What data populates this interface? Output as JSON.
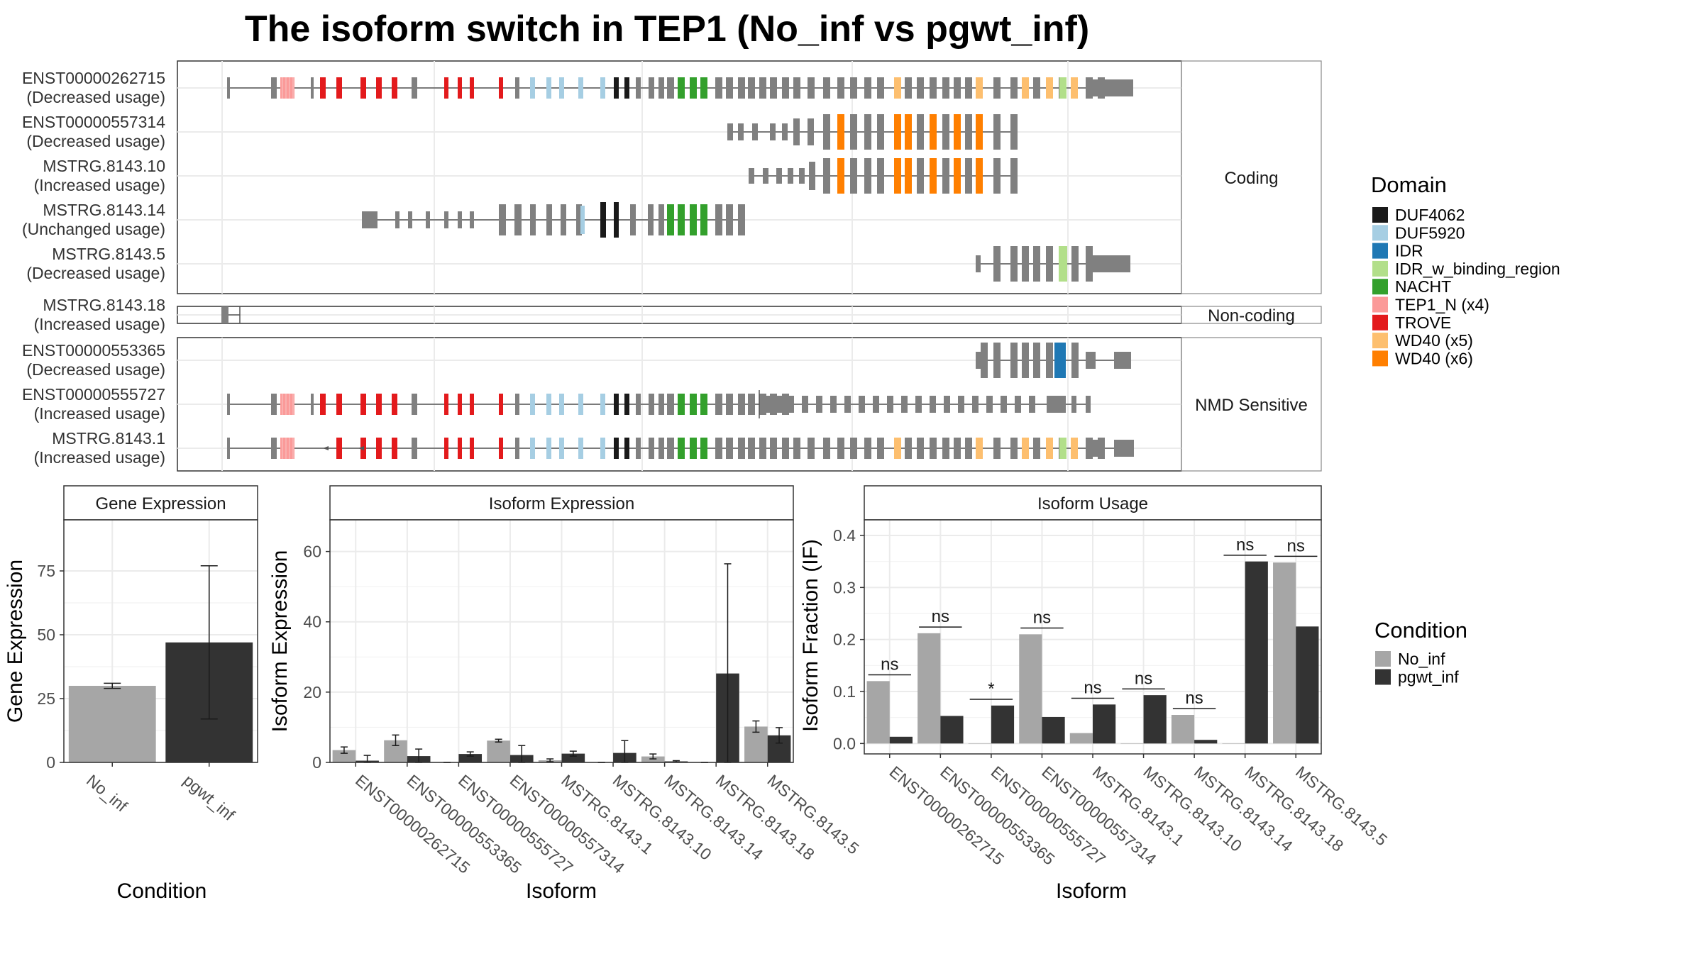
{
  "title": "The isoform switch in TEP1 (No_inf vs pgwt_inf)",
  "legend_domain": {
    "title": "Domain",
    "items": [
      {
        "label": "DUF4062",
        "color": "#1a1a1a"
      },
      {
        "label": "DUF5920",
        "color": "#a6cee3"
      },
      {
        "label": "IDR",
        "color": "#1f78b4"
      },
      {
        "label": "IDR_w_binding_region",
        "color": "#b2df8a"
      },
      {
        "label": "NACHT",
        "color": "#33a02c"
      },
      {
        "label": "TEP1_N (x4)",
        "color": "#fb9a99"
      },
      {
        "label": "TROVE",
        "color": "#e31a1c"
      },
      {
        "label": "WD40 (x5)",
        "color": "#fdbf6f"
      },
      {
        "label": "WD40 (x6)",
        "color": "#ff7f00"
      }
    ]
  },
  "legend_condition": {
    "title": "Condition",
    "items": [
      {
        "label": "No_inf",
        "color": "#a6a6a6"
      },
      {
        "label": "pgwt_inf",
        "color": "#333333"
      }
    ]
  },
  "colors": {
    "exon": "#808080",
    "intron": "#555555",
    "no_inf": "#a6a6a6",
    "pgwt_inf": "#333333"
  },
  "structure": {
    "groups": [
      {
        "label": "Coding",
        "rows": [
          {
            "name": "ENST00000262715",
            "usage": "(Decreased usage)"
          },
          {
            "name": "ENST00000557314",
            "usage": "(Decreased usage)"
          },
          {
            "name": "MSTRG.8143.10",
            "usage": "(Increased usage)"
          },
          {
            "name": "MSTRG.8143.14",
            "usage": "(Unchanged usage)"
          },
          {
            "name": "MSTRG.8143.5",
            "usage": "(Decreased usage)"
          }
        ]
      },
      {
        "label": "Non-coding",
        "rows": [
          {
            "name": "MSTRG.8143.18",
            "usage": "(Increased usage)"
          }
        ]
      },
      {
        "label": "NMD Sensitive",
        "rows": [
          {
            "name": "ENST00000553365",
            "usage": "(Decreased usage)"
          },
          {
            "name": "ENST00000555727",
            "usage": "(Increased usage)"
          },
          {
            "name": "MSTRG.8143.1",
            "usage": "(Increased usage)"
          }
        ]
      }
    ]
  },
  "chart_data": [
    {
      "type": "bar",
      "title": "Gene Expression",
      "xlabel": "Condition",
      "ylabel": "Gene Expression",
      "categories": [
        "No_inf",
        "pgwt_inf"
      ],
      "values": [
        30,
        47
      ],
      "error_low": [
        29,
        17
      ],
      "error_high": [
        31,
        77
      ],
      "ylim": [
        0,
        95
      ],
      "yticks": [
        0,
        25,
        50,
        75
      ]
    },
    {
      "type": "bar",
      "title": "Isoform Expression",
      "xlabel": "Isoform",
      "ylabel": "Isoform Expression",
      "categories": [
        "ENST00000262715",
        "ENST00000553365",
        "ENST00000555727",
        "ENST00000557314",
        "MSTRG.8143.1",
        "MSTRG.8143.10",
        "MSTRG.8143.14",
        "MSTRG.8143.18",
        "MSTRG.8143.5"
      ],
      "ylim": [
        0,
        69
      ],
      "yticks": [
        0,
        20,
        40,
        60
      ],
      "series": [
        {
          "name": "No_inf",
          "values": [
            3.5,
            6.3,
            0,
            6.2,
            0.6,
            0,
            1.7,
            0,
            10.2
          ],
          "error_low": [
            2.6,
            4.8,
            0,
            5.8,
            0.2,
            0,
            1.0,
            0,
            8.6
          ],
          "error_high": [
            4.4,
            7.8,
            0,
            6.6,
            1.0,
            0,
            2.4,
            0,
            11.8
          ]
        },
        {
          "name": "pgwt_inf",
          "values": [
            0.5,
            1.8,
            2.4,
            2.1,
            2.5,
            2.7,
            0.3,
            25.3,
            7.7
          ],
          "error_low": [
            0,
            0,
            1.8,
            0,
            1.8,
            0,
            0.1,
            0,
            5.5
          ],
          "error_high": [
            2.0,
            3.8,
            3.0,
            4.8,
            3.2,
            6.2,
            0.5,
            56.5,
            9.9
          ]
        }
      ]
    },
    {
      "type": "bar",
      "title": "Isoform Usage",
      "xlabel": "Isoform",
      "ylabel": "Isoform Fraction (IF)",
      "categories": [
        "ENST00000262715",
        "ENST00000553365",
        "ENST00000555727",
        "ENST00000557314",
        "MSTRG.8143.1",
        "MSTRG.8143.10",
        "MSTRG.8143.14",
        "MSTRG.8143.18",
        "MSTRG.8143.5"
      ],
      "ylim": [
        -0.02,
        0.43
      ],
      "yticks": [
        0.0,
        0.1,
        0.2,
        0.3,
        0.4
      ],
      "ytick_labels": [
        "0.0",
        "0.1",
        "0.2",
        "0.3",
        "0.4"
      ],
      "series": [
        {
          "name": "No_inf",
          "values": [
            0.12,
            0.212,
            0,
            0.21,
            0.02,
            0,
            0.055,
            0,
            0.348
          ]
        },
        {
          "name": "pgwt_inf",
          "values": [
            0.013,
            0.053,
            0.073,
            0.051,
            0.075,
            0.093,
            0.007,
            0.35,
            0.225
          ]
        }
      ],
      "significance": [
        "ns",
        "ns",
        "*",
        "ns",
        "ns",
        "ns",
        "ns",
        "ns",
        "ns"
      ]
    }
  ]
}
